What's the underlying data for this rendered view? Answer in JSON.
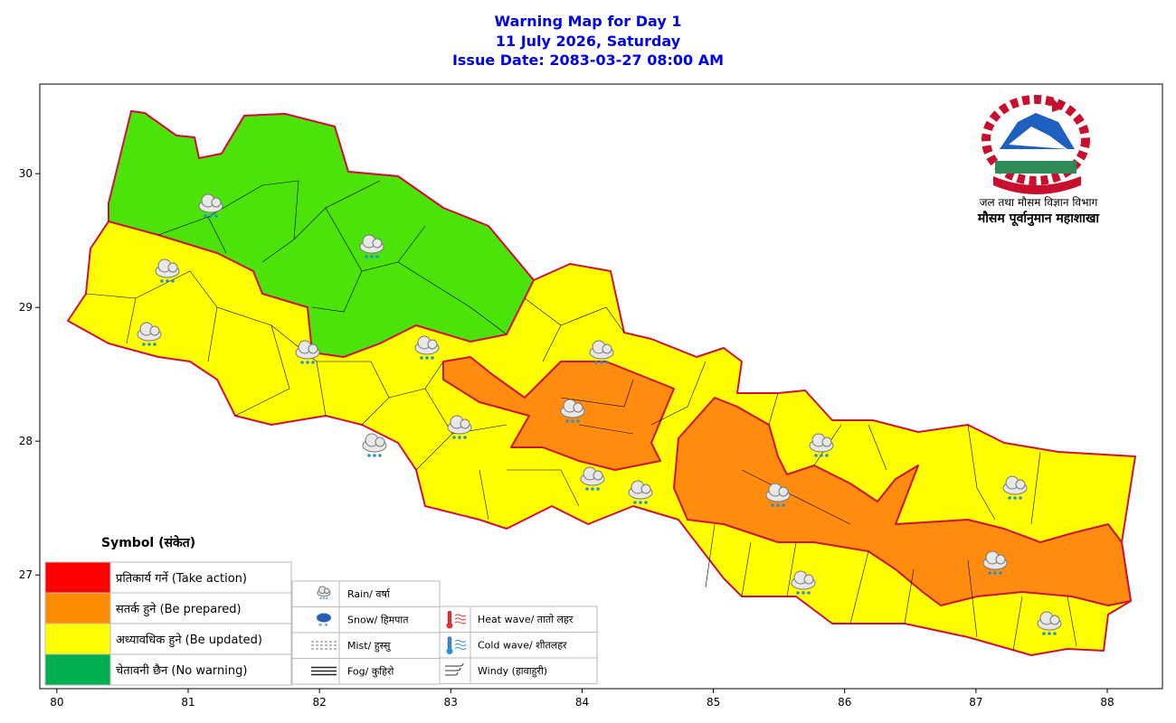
{
  "header": {
    "title": "Warning Map for Day 1",
    "date": "11 July 2026, Saturday",
    "issue_date": "Issue Date: 2083-03-27 08:00 AM"
  },
  "map": {
    "xlim": [
      79.87,
      88.42
    ],
    "ylim": [
      26.15,
      30.67
    ],
    "xticks": [
      80,
      81,
      82,
      83,
      84,
      85,
      86,
      87,
      88
    ],
    "yticks": [
      27,
      28,
      29,
      30
    ]
  },
  "organization": {
    "department": "जल तथा मौसम विज्ञान विभाग",
    "division": "मौसम पूर्वानुमान महाशाखा"
  },
  "legend": {
    "title": "Symbol (संकेत)",
    "levels": [
      {
        "label": "प्रतिकार्य गर्ने (Take action)",
        "color": "#ff0000"
      },
      {
        "label": "सतर्क हुने (Be prepared)",
        "color": "#ff8c00"
      },
      {
        "label": "अध्यावधिक हुने (Be updated)",
        "color": "#ffff00"
      },
      {
        "label": "चेतावनी छैन (No warning)",
        "color": "#00b050"
      }
    ],
    "symbols": [
      "Rain/ वर्षा",
      "Snow/ हिमपात",
      "Mist/ हुस्सु",
      "Fog/ कुहिरो"
    ],
    "symbols2": [
      "Heat wave/ तातो लहर",
      "Cold wave/ शीतलहर",
      "Windy (हावाहुरी)"
    ]
  }
}
